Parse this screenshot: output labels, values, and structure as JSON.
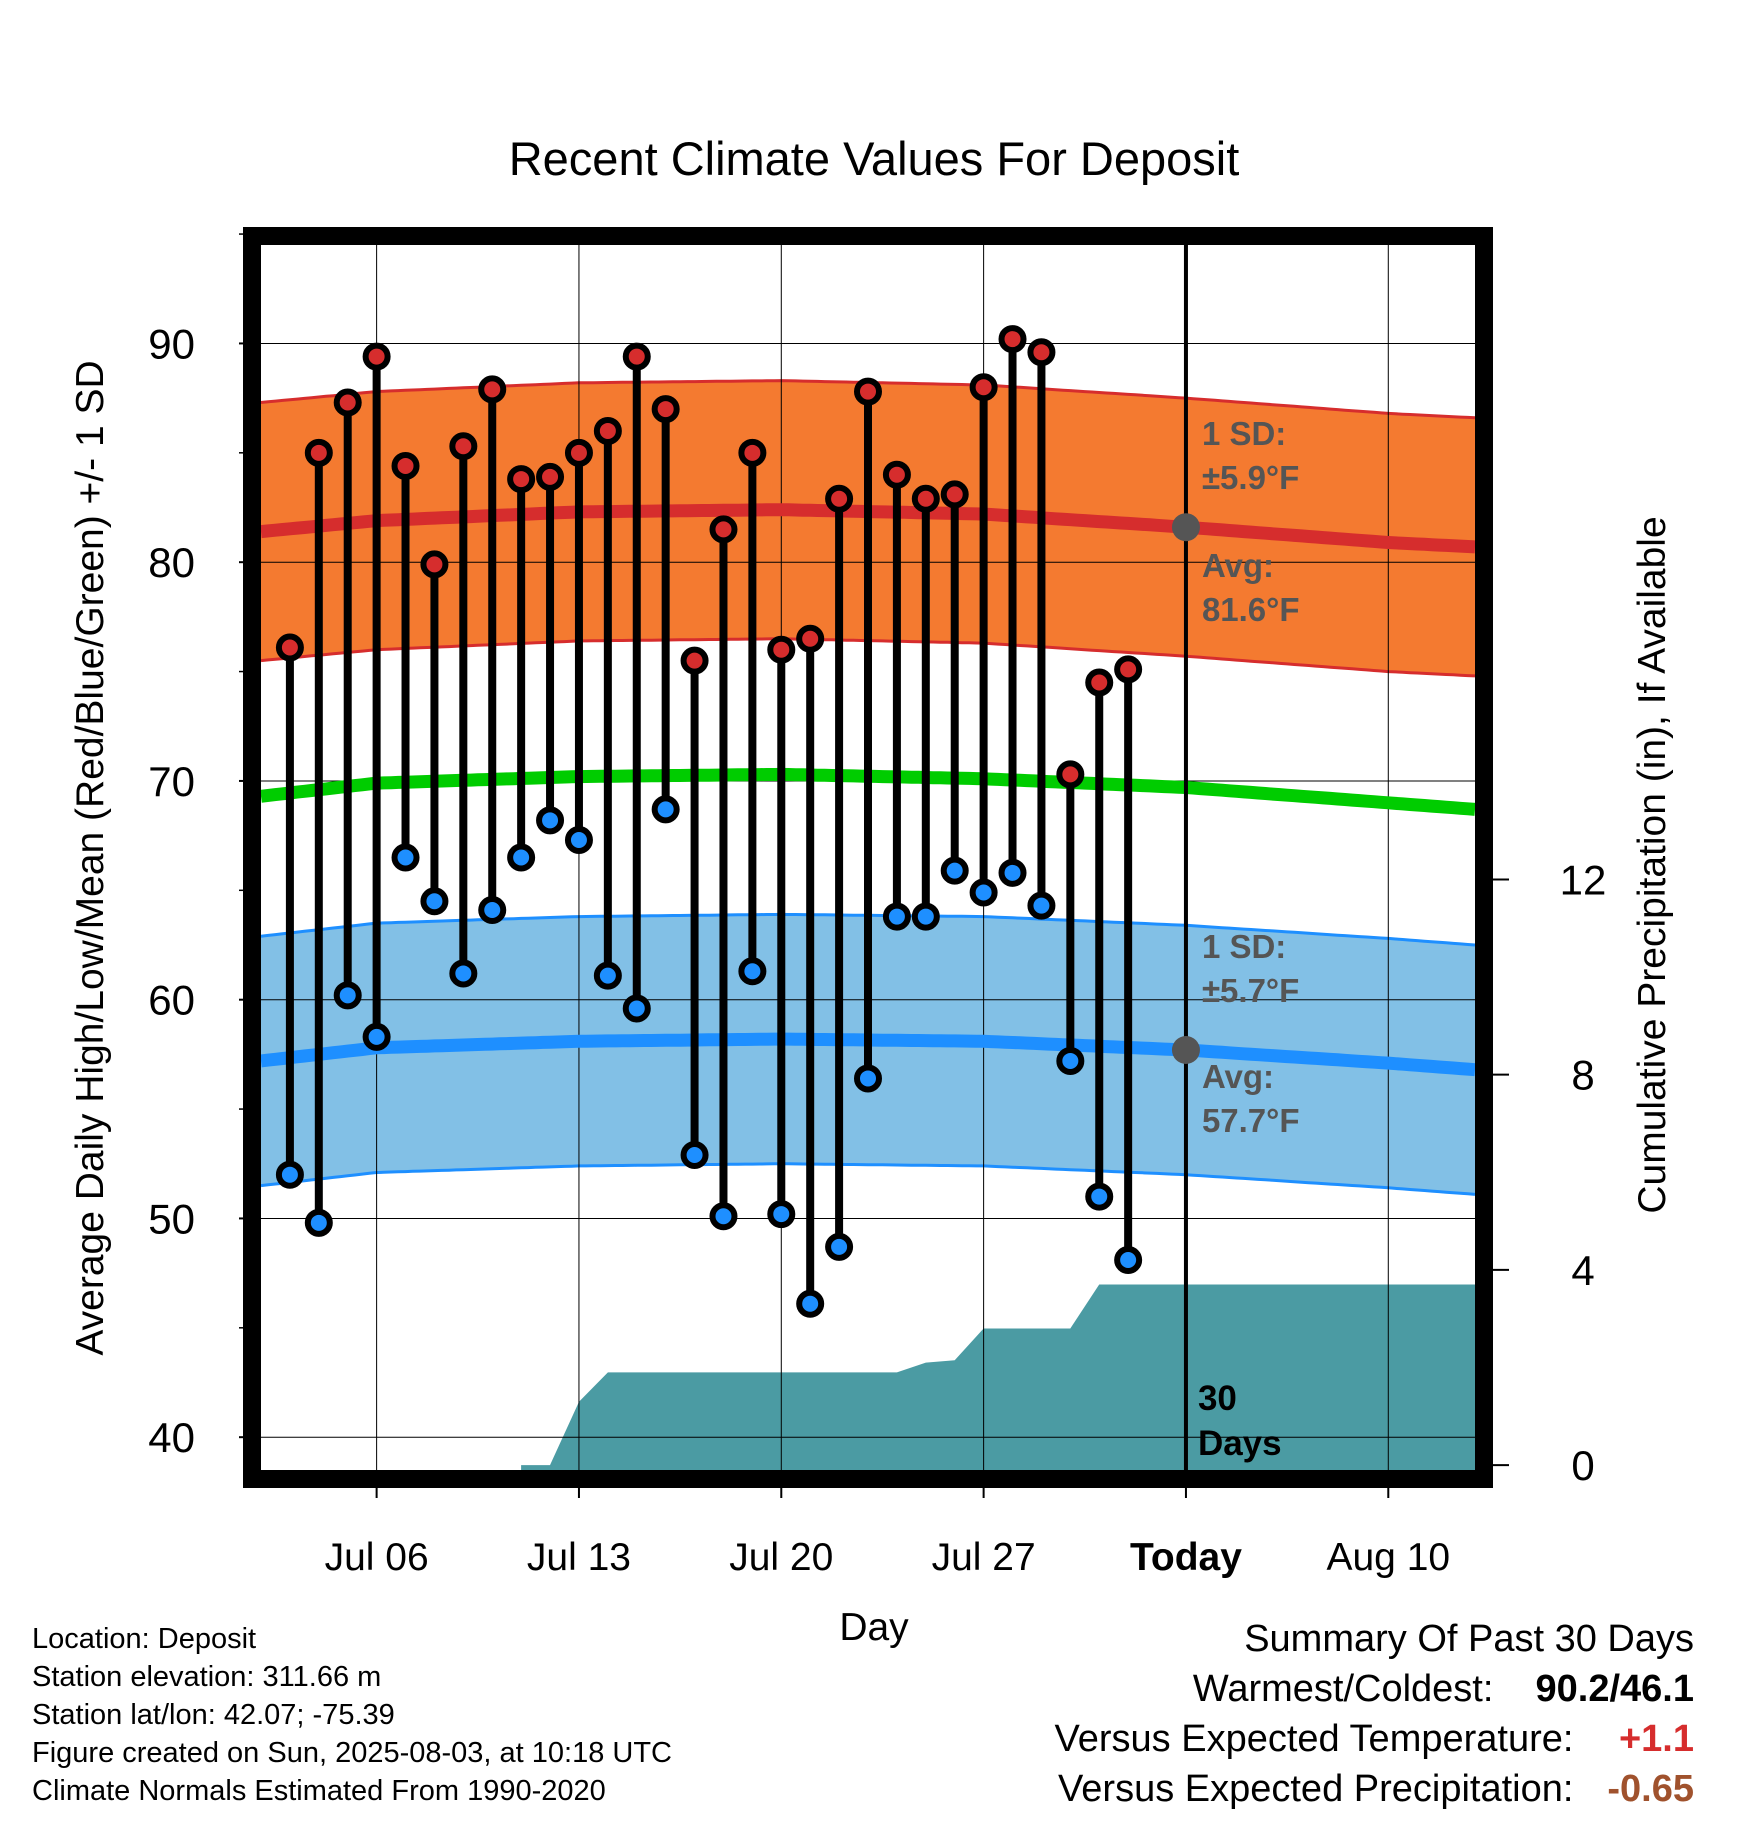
{
  "chart_data": {
    "type": "line",
    "title": "Recent Climate Values For Deposit",
    "xlabel": "Day",
    "ylabel": "Average Daily High/Low/Mean (Red/Blue/Green) +/- 1 SD",
    "y2label": "Cumulative Precipitation (in), If Available",
    "ylim": [
      38.5,
      94.5
    ],
    "y2lim": [
      -0.1,
      25
    ],
    "xlim": [
      "2025-07-02",
      "2025-08-13"
    ],
    "yticks": [
      40,
      50,
      60,
      70,
      80,
      90
    ],
    "y2ticks": [
      0,
      4,
      8,
      12
    ],
    "xticks": [
      {
        "date": "2025-07-06",
        "label": "Jul 06"
      },
      {
        "date": "2025-07-13",
        "label": "Jul 13"
      },
      {
        "date": "2025-07-20",
        "label": "Jul 20"
      },
      {
        "date": "2025-07-27",
        "label": "Jul 27"
      },
      {
        "date": "2025-08-03",
        "label": "Today"
      },
      {
        "date": "2025-08-10",
        "label": "Aug 10"
      }
    ],
    "grid": true,
    "colors": {
      "high_band": "#f47a30",
      "high_line": "#d62d2d",
      "low_band": "#82c0e6",
      "low_line": "#1e8fff",
      "mean_line": "#00cc00",
      "precip": "#4b9ba3",
      "high_dot": "#d62d2d",
      "low_dot": "#1e8fff",
      "annotation": "#555555"
    },
    "normals": {
      "dates": [
        "2025-07-02",
        "2025-07-06",
        "2025-07-13",
        "2025-07-20",
        "2025-07-27",
        "2025-08-03",
        "2025-08-10",
        "2025-08-13"
      ],
      "avg_high": [
        81.4,
        81.9,
        82.3,
        82.4,
        82.2,
        81.6,
        80.9,
        80.7
      ],
      "avg_low": [
        57.2,
        57.8,
        58.1,
        58.2,
        58.1,
        57.7,
        57.1,
        56.8
      ],
      "avg_mean": [
        69.3,
        69.9,
        70.2,
        70.3,
        70.1,
        69.7,
        69.0,
        68.7
      ],
      "high_sd": 5.9,
      "low_sd": 5.7
    },
    "series": [
      {
        "name": "Daily High",
        "dates": [
          "2025-07-03",
          "2025-07-04",
          "2025-07-05",
          "2025-07-06",
          "2025-07-07",
          "2025-07-08",
          "2025-07-09",
          "2025-07-10",
          "2025-07-11",
          "2025-07-12",
          "2025-07-13",
          "2025-07-14",
          "2025-07-15",
          "2025-07-16",
          "2025-07-17",
          "2025-07-18",
          "2025-07-19",
          "2025-07-20",
          "2025-07-21",
          "2025-07-22",
          "2025-07-23",
          "2025-07-24",
          "2025-07-25",
          "2025-07-26",
          "2025-07-27",
          "2025-07-28",
          "2025-07-29",
          "2025-07-30",
          "2025-07-31",
          "2025-08-01",
          "2025-08-02"
        ],
        "values": [
          76.1,
          85.0,
          87.3,
          89.4,
          84.4,
          79.9,
          85.3,
          87.9,
          83.8,
          83.9,
          85.0,
          86.0,
          89.4,
          87.0,
          75.5,
          81.5,
          85.0,
          76.0,
          76.5,
          82.9,
          87.8,
          84.0,
          82.9,
          83.1,
          88.0,
          90.2,
          89.6,
          70.3,
          74.5,
          75.1,
          null
        ]
      },
      {
        "name": "Daily Low",
        "dates": [
          "2025-07-03",
          "2025-07-04",
          "2025-07-05",
          "2025-07-06",
          "2025-07-07",
          "2025-07-08",
          "2025-07-09",
          "2025-07-10",
          "2025-07-11",
          "2025-07-12",
          "2025-07-13",
          "2025-07-14",
          "2025-07-15",
          "2025-07-16",
          "2025-07-17",
          "2025-07-18",
          "2025-07-19",
          "2025-07-20",
          "2025-07-21",
          "2025-07-22",
          "2025-07-23",
          "2025-07-24",
          "2025-07-25",
          "2025-07-26",
          "2025-07-27",
          "2025-07-28",
          "2025-07-29",
          "2025-07-30",
          "2025-07-31",
          "2025-08-01",
          "2025-08-02"
        ],
        "values": [
          52.0,
          49.8,
          60.2,
          58.3,
          66.5,
          64.5,
          61.2,
          64.1,
          66.5,
          68.2,
          67.3,
          61.1,
          59.6,
          68.7,
          52.9,
          50.1,
          61.3,
          50.2,
          46.1,
          48.7,
          56.4,
          63.8,
          63.8,
          65.9,
          64.9,
          65.8,
          64.3,
          57.2,
          51.0,
          48.1,
          null
        ]
      },
      {
        "name": "Cumulative Precipitation",
        "dates": [
          "2025-07-11",
          "2025-07-12",
          "2025-07-13",
          "2025-07-14",
          "2025-07-15",
          "2025-07-16",
          "2025-07-17",
          "2025-07-18",
          "2025-07-19",
          "2025-07-20",
          "2025-07-21",
          "2025-07-22",
          "2025-07-23",
          "2025-07-24",
          "2025-07-25",
          "2025-07-26",
          "2025-07-27",
          "2025-07-28",
          "2025-07-29",
          "2025-07-30",
          "2025-07-31",
          "2025-08-01",
          "2025-08-02",
          "2025-08-03",
          "2025-08-13"
        ],
        "values": [
          0.0,
          0.0,
          1.3,
          1.9,
          1.9,
          1.9,
          1.9,
          1.9,
          1.9,
          1.9,
          1.9,
          1.9,
          1.9,
          1.9,
          2.1,
          2.15,
          2.8,
          2.8,
          2.8,
          2.8,
          3.7,
          3.7,
          3.7,
          3.7,
          3.7
        ]
      }
    ],
    "annotations": {
      "high_sd_label": "1 SD:",
      "high_sd_value": "±5.9°F",
      "high_avg_label": "Avg:",
      "high_avg_value": "81.6°F",
      "low_sd_label": "1 SD:",
      "low_sd_value": "±5.7°F",
      "low_avg_label": "Avg:",
      "low_avg_value": "57.7°F",
      "period_line1": "30",
      "period_line2": "Days",
      "today_date": "2025-08-03"
    }
  },
  "info": {
    "location": "Location: Deposit",
    "elevation": "Station elevation: 311.66 m",
    "latlon": "Station lat/lon: 42.07; -75.39",
    "created": "Figure created on Sun, 2025-08-03, at 10:18 UTC",
    "normals": "Climate Normals Estimated From 1990-2020"
  },
  "summary": {
    "title": "Summary Of Past 30 Days",
    "warm_cold_label": "Warmest/Coldest:",
    "warm_cold_value": "90.2/46.1",
    "temp_label": "Versus Expected Temperature:",
    "temp_value": "+1.1",
    "precip_label": "Versus Expected Precipitation:",
    "precip_value": "-0.65",
    "temp_color": "#d62d2d",
    "precip_color": "#a0522d"
  }
}
